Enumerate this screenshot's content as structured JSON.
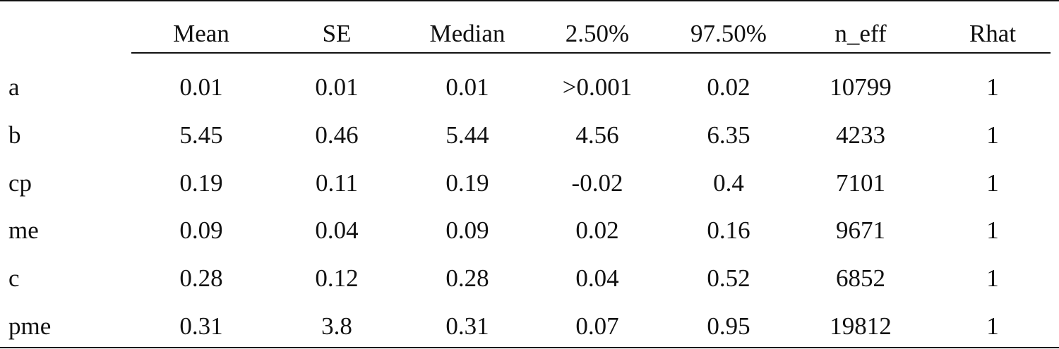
{
  "table": {
    "columns": [
      "Mean",
      "SE",
      "Median",
      "2.50%",
      "97.50%",
      "n_eff",
      "Rhat"
    ],
    "rows": [
      {
        "label": "a",
        "values": [
          "0.01",
          "0.01",
          "0.01",
          ">0.001",
          "0.02",
          "10799",
          "1"
        ]
      },
      {
        "label": "b",
        "values": [
          "5.45",
          "0.46",
          "5.44",
          "4.56",
          "6.35",
          "4233",
          "1"
        ]
      },
      {
        "label": "cp",
        "values": [
          "0.19",
          "0.11",
          "0.19",
          "-0.02",
          "0.4",
          "7101",
          "1"
        ]
      },
      {
        "label": "me",
        "values": [
          "0.09",
          "0.04",
          "0.09",
          "0.02",
          "0.16",
          "9671",
          "1"
        ]
      },
      {
        "label": "c",
        "values": [
          "0.28",
          "0.12",
          "0.28",
          "0.04",
          "0.52",
          "6852",
          "1"
        ]
      },
      {
        "label": "pme",
        "values": [
          "0.31",
          "3.8",
          "0.31",
          "0.07",
          "0.95",
          "19812",
          "1"
        ]
      }
    ]
  }
}
